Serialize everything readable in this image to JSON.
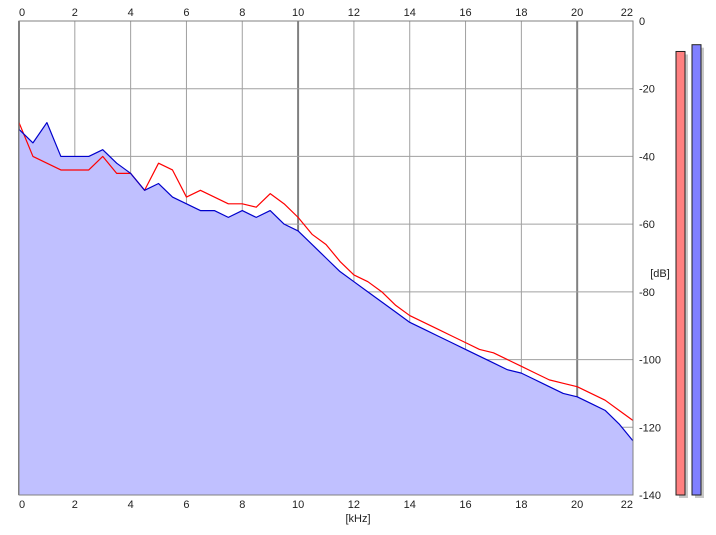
{
  "chart_data": {
    "type": "area",
    "xlabel": "[kHz]",
    "ylabel": "[dB]",
    "xlim": [
      0,
      22
    ],
    "ylim": [
      -140,
      0
    ],
    "x_ticks": [
      "0",
      "2",
      "4",
      "6",
      "8",
      "10",
      "12",
      "14",
      "16",
      "18",
      "20",
      "22"
    ],
    "y_ticks": [
      "0",
      "-20",
      "-40",
      "-60",
      "-80",
      "-100",
      "-120",
      "-140"
    ],
    "grid": true,
    "series": [
      {
        "color": "#ff0000",
        "x": [
          0,
          0.5,
          1,
          1.5,
          2,
          2.5,
          3,
          3.5,
          4,
          4.5,
          5,
          5.5,
          6,
          6.5,
          7,
          7.5,
          8,
          8.5,
          9,
          9.5,
          10,
          10.5,
          11,
          11.5,
          12,
          12.5,
          13,
          13.5,
          14,
          14.5,
          15,
          15.5,
          16,
          16.5,
          17,
          17.5,
          18,
          18.5,
          19,
          19.5,
          20,
          20.5,
          21,
          21.5,
          22
        ],
        "y": [
          -30,
          -40,
          -42,
          -44,
          -44,
          -44,
          -40,
          -45,
          -45,
          -50,
          -42,
          -44,
          -52,
          -50,
          -52,
          -54,
          -54,
          -55,
          -51,
          -54,
          -58,
          -63,
          -66,
          -71,
          -75,
          -77,
          -80,
          -84,
          -87,
          -89,
          -91,
          -93,
          -95,
          -97,
          -98,
          -100,
          -102,
          -104,
          -106,
          -107,
          -108,
          -110,
          -112,
          -115,
          -118
        ]
      },
      {
        "color": "#0000cc",
        "x": [
          0,
          0.5,
          1,
          1.5,
          2,
          2.5,
          3,
          3.5,
          4,
          4.5,
          5,
          5.5,
          6,
          6.5,
          7,
          7.5,
          8,
          8.5,
          9,
          9.5,
          10,
          10.5,
          11,
          11.5,
          12,
          12.5,
          13,
          13.5,
          14,
          14.5,
          15,
          15.5,
          16,
          16.5,
          17,
          17.5,
          18,
          18.5,
          19,
          19.5,
          20,
          20.5,
          21,
          21.5,
          22
        ],
        "y": [
          -32,
          -36,
          -30,
          -40,
          -40,
          -40,
          -38,
          -42,
          -45,
          -50,
          -48,
          -52,
          -54,
          -56,
          -56,
          -58,
          -56,
          -58,
          -56,
          -60,
          -62,
          -66,
          -70,
          -74,
          -77,
          -80,
          -83,
          -86,
          -89,
          -91,
          -93,
          -95,
          -97,
          -99,
          -101,
          -103,
          -104,
          -106,
          -108,
          -110,
          -111,
          -113,
          -115,
          -119,
          -124
        ]
      }
    ],
    "fill": {
      "color": "#c0c0ff",
      "baseline": -140
    },
    "level_meters": [
      {
        "color": "#ff8080",
        "level_db": -9
      },
      {
        "color": "#8080ff",
        "level_db": -7
      }
    ]
  }
}
